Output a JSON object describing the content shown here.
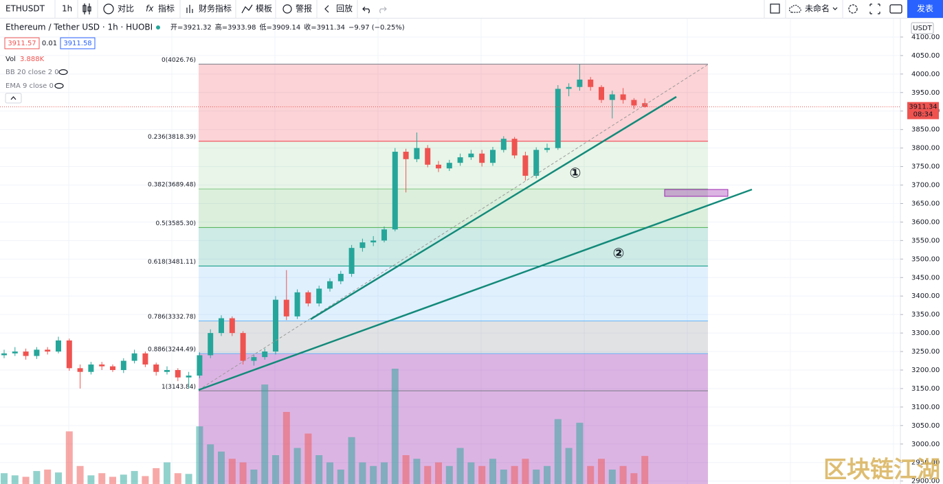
{
  "toolbar": {
    "symbol": "ETHUSDT",
    "interval": "1h",
    "compare": "对比",
    "indicators": "指标",
    "financials": "财务指标",
    "templates": "模板",
    "alert": "警报",
    "replay": "回放",
    "layout_name": "未命名",
    "publish": "发表"
  },
  "legend": {
    "title": "Ethereum / Tether USD · 1h · HUOBI",
    "ohlc": [
      "开=3921.32",
      "高=3933.98",
      "低=3909.14",
      "收=3911.34",
      "−9.97 (−0.25%)"
    ],
    "bid": "3911.57",
    "spread": "0.01",
    "ask": "3911.58",
    "vol_label": "Vol",
    "vol_value": "3.888K",
    "bb": "BB 20 close 2 0",
    "ema": "EMA 9 close 0"
  },
  "annotations": {
    "line1": "①",
    "line2": "②"
  },
  "watermark": "区块链江湖",
  "chart_data": {
    "type": "candlestick",
    "currency": "USDT",
    "countdown": "08:34",
    "grid": true,
    "up_color": "#26a69a",
    "down_color": "#ef5350",
    "open": [
      3240,
      3245,
      3250,
      3238,
      3255,
      3250,
      3280,
      3205,
      3195,
      3215,
      3210,
      3200,
      3225,
      3245,
      3215,
      3195,
      3200,
      3180,
      3185,
      3240,
      3300,
      3340,
      3300,
      3225,
      3235,
      3250,
      3390,
      3345,
      3410,
      3380,
      3420,
      3440,
      3460,
      3530,
      3545,
      3550,
      3580,
      3790,
      3770,
      3800,
      3755,
      3745,
      3760,
      3775,
      3785,
      3760,
      3795,
      3825,
      3780,
      3725,
      3795,
      3800,
      3960,
      3965,
      3985,
      3965,
      3930,
      3945,
      3930,
      3921.32
    ],
    "high": [
      3255,
      3262,
      3258,
      3262,
      3262,
      3290,
      3285,
      3215,
      3222,
      3222,
      3215,
      3232,
      3255,
      3250,
      3220,
      3210,
      3205,
      3195,
      3248,
      3310,
      3348,
      3345,
      3305,
      3242,
      3258,
      3400,
      3470,
      3418,
      3415,
      3428,
      3448,
      3468,
      3538,
      3555,
      3562,
      3588,
      3800,
      3798,
      3842,
      3808,
      3765,
      3768,
      3785,
      3795,
      3795,
      3803,
      3832,
      3830,
      3790,
      3802,
      3812,
      3970,
      3975,
      4026.76,
      3992,
      3970,
      3955,
      3962,
      3935,
      3933.98
    ],
    "low": [
      3232,
      3238,
      3228,
      3230,
      3242,
      3245,
      3198,
      3150,
      3188,
      3200,
      3195,
      3192,
      3218,
      3208,
      3185,
      3188,
      3170,
      3150,
      3178,
      3232,
      3292,
      3292,
      3215,
      3212,
      3228,
      3242,
      3335,
      3338,
      3372,
      3372,
      3412,
      3432,
      3452,
      3520,
      3535,
      3545,
      3575,
      3680,
      3762,
      3748,
      3735,
      3738,
      3752,
      3768,
      3750,
      3752,
      3788,
      3772,
      3712,
      3718,
      3788,
      3795,
      3940,
      3955,
      3955,
      3922,
      3880,
      3920,
      3905,
      3909.14
    ],
    "close": [
      3245,
      3250,
      3238,
      3255,
      3250,
      3280,
      3205,
      3195,
      3215,
      3210,
      3200,
      3225,
      3245,
      3215,
      3195,
      3200,
      3180,
      3185,
      3240,
      3300,
      3340,
      3300,
      3225,
      3235,
      3250,
      3390,
      3345,
      3410,
      3380,
      3420,
      3440,
      3460,
      3530,
      3545,
      3550,
      3580,
      3790,
      3770,
      3800,
      3755,
      3745,
      3760,
      3775,
      3785,
      3760,
      3795,
      3825,
      3780,
      3725,
      3795,
      3800,
      3960,
      3965,
      3985,
      3965,
      3930,
      3945,
      3930,
      3915,
      3911.34
    ],
    "volume": [
      1.5,
      1.2,
      1.0,
      1.8,
      2.0,
      1.6,
      7.3,
      2.5,
      1.2,
      1.5,
      1.0,
      1.3,
      1.8,
      1.1,
      2.2,
      3.0,
      1.5,
      1.4,
      8.0,
      5.5,
      4.5,
      3.5,
      3.0,
      2.0,
      13.8,
      4.0,
      10.0,
      5.0,
      7.0,
      4.0,
      3.0,
      2.0,
      6.5,
      3.0,
      2.5,
      3.0,
      16.0,
      4.0,
      3.5,
      2.5,
      3.0,
      2.5,
      5.0,
      3.0,
      2.5,
      3.5,
      2.0,
      2.5,
      3.5,
      2.0,
      2.5,
      9.0,
      5.0,
      8.5,
      2.5,
      3.5,
      2.0,
      2.5,
      1.5,
      3.888
    ],
    "ylim": [
      2892,
      4150
    ],
    "yticks": [
      {
        "value": 2900,
        "label": "2900.00"
      },
      {
        "value": 2950,
        "label": "2950.00"
      },
      {
        "value": 3000,
        "label": "3000.00"
      },
      {
        "value": 3050,
        "label": "3050.00"
      },
      {
        "value": 3100,
        "label": "3100.00"
      },
      {
        "value": 3150,
        "label": "3150.00"
      },
      {
        "value": 3200,
        "label": "3200.00"
      },
      {
        "value": 3250,
        "label": "3250.00"
      },
      {
        "value": 3300,
        "label": "3300.00"
      },
      {
        "value": 3350,
        "label": "3350.00"
      },
      {
        "value": 3400,
        "label": "3400.00"
      },
      {
        "value": 3450,
        "label": "3450.00"
      },
      {
        "value": 3500,
        "label": "3500.00"
      },
      {
        "value": 3550,
        "label": "3550.00"
      },
      {
        "value": 3600,
        "label": "3600.00"
      },
      {
        "value": 3650,
        "label": "3650.00"
      },
      {
        "value": 3700,
        "label": "3700.00"
      },
      {
        "value": 3750,
        "label": "3750.00"
      },
      {
        "value": 3800,
        "label": "3800.00"
      },
      {
        "value": 3850,
        "label": "3850.00"
      },
      {
        "value": 3900,
        "label": "3900.00"
      },
      {
        "value": 3950,
        "label": "3950.00"
      },
      {
        "value": 4000,
        "label": "4000.00"
      },
      {
        "value": 4050,
        "label": "4050.00"
      },
      {
        "value": 4100,
        "label": "4100.00"
      }
    ],
    "fib_levels": [
      {
        "label": "0(4026.76)",
        "value": 4026.76,
        "color": "#787b86",
        "fill": "rgba(242,54,69,0.22)"
      },
      {
        "label": "0.236(3818.39)",
        "value": 3818.39,
        "color": "#f23645",
        "fill": "rgba(76,175,80,0.13)"
      },
      {
        "label": "0.382(3689.48)",
        "value": 3689.48,
        "color": "#81c784",
        "fill": "rgba(76,175,80,0.2)"
      },
      {
        "label": "0.5(3585.30)",
        "value": 3585.3,
        "color": "#4caf50",
        "fill": "rgba(8,153,129,0.2)"
      },
      {
        "label": "0.618(3481.11)",
        "value": 3481.11,
        "color": "#089981",
        "fill": "rgba(100,181,246,0.2)"
      },
      {
        "label": "0.786(3332.78)",
        "value": 3332.78,
        "color": "#64b5f6",
        "fill": "rgba(120,123,134,0.22)"
      },
      {
        "label": "0.886(3244.49)",
        "value": 3244.49,
        "color": "#64b5f6",
        "fill": "rgba(156,39,176,0.35)"
      },
      {
        "label": "1(3143.84)",
        "value": 3143.84,
        "color": "#787b86",
        "fill": "rgba(156,39,176,0.35)"
      }
    ]
  }
}
